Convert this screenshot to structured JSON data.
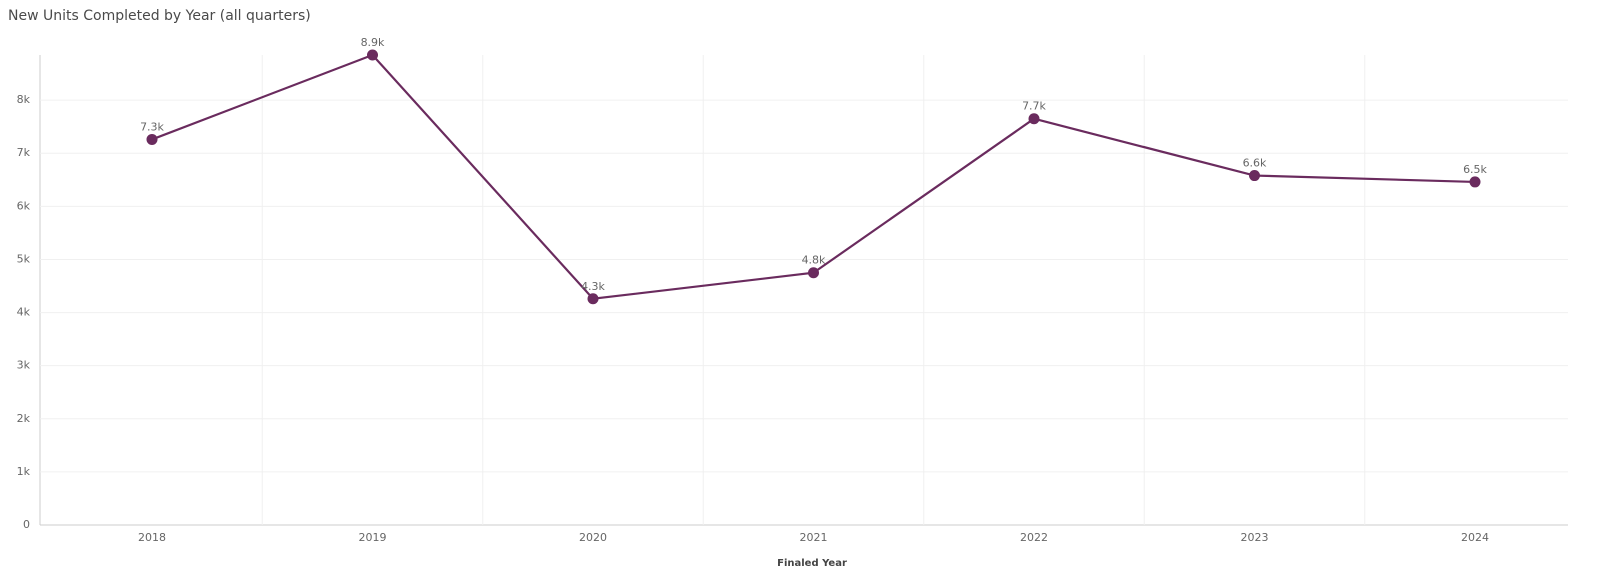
{
  "chart_data": {
    "type": "line",
    "title": "New Units Completed by Year (all quarters)",
    "x_label": "Finaled Year",
    "categories": [
      "2018",
      "2019",
      "2020",
      "2021",
      "2022",
      "2023",
      "2024"
    ],
    "series": [
      {
        "name": "New Units Completed",
        "color": "#6a2b5e",
        "values": [
          7260,
          8850,
          4260,
          4750,
          7650,
          6580,
          6460
        ],
        "value_labels": [
          "7.3k",
          "8.9k",
          "4.3k",
          "4.8k",
          "7.7k",
          "6.6k",
          "6.5k"
        ]
      }
    ],
    "ylim": [
      0,
      8850
    ],
    "yticks": [
      {
        "value": 0,
        "label": "0"
      },
      {
        "value": 1000,
        "label": "1k"
      },
      {
        "value": 2000,
        "label": "2k"
      },
      {
        "value": 3000,
        "label": "3k"
      },
      {
        "value": 4000,
        "label": "4k"
      },
      {
        "value": 5000,
        "label": "5k"
      },
      {
        "value": 6000,
        "label": "6k"
      },
      {
        "value": 7000,
        "label": "7k"
      },
      {
        "value": 8000,
        "label": "8k"
      }
    ],
    "grid": true
  }
}
